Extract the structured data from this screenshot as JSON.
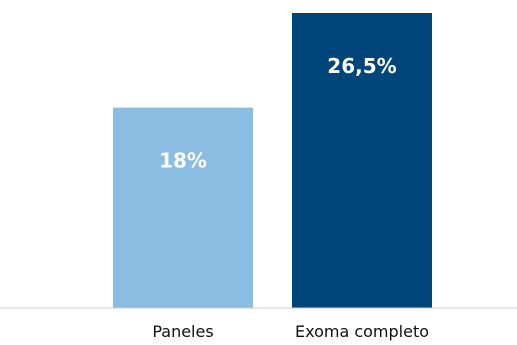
{
  "chart_data": {
    "type": "bar",
    "categories": [
      "Paneles",
      "Exoma completo"
    ],
    "values": [
      18,
      26.5
    ],
    "data_labels": [
      "18%",
      "26,5%"
    ],
    "colors": [
      "#8bbde3",
      "#00457a"
    ],
    "label_color": "#ffffff",
    "axis_color": "#cccccc",
    "title": "",
    "xlabel": "",
    "ylabel": "",
    "ylim": [
      0,
      26.5
    ],
    "grid": false,
    "legend": "none"
  }
}
